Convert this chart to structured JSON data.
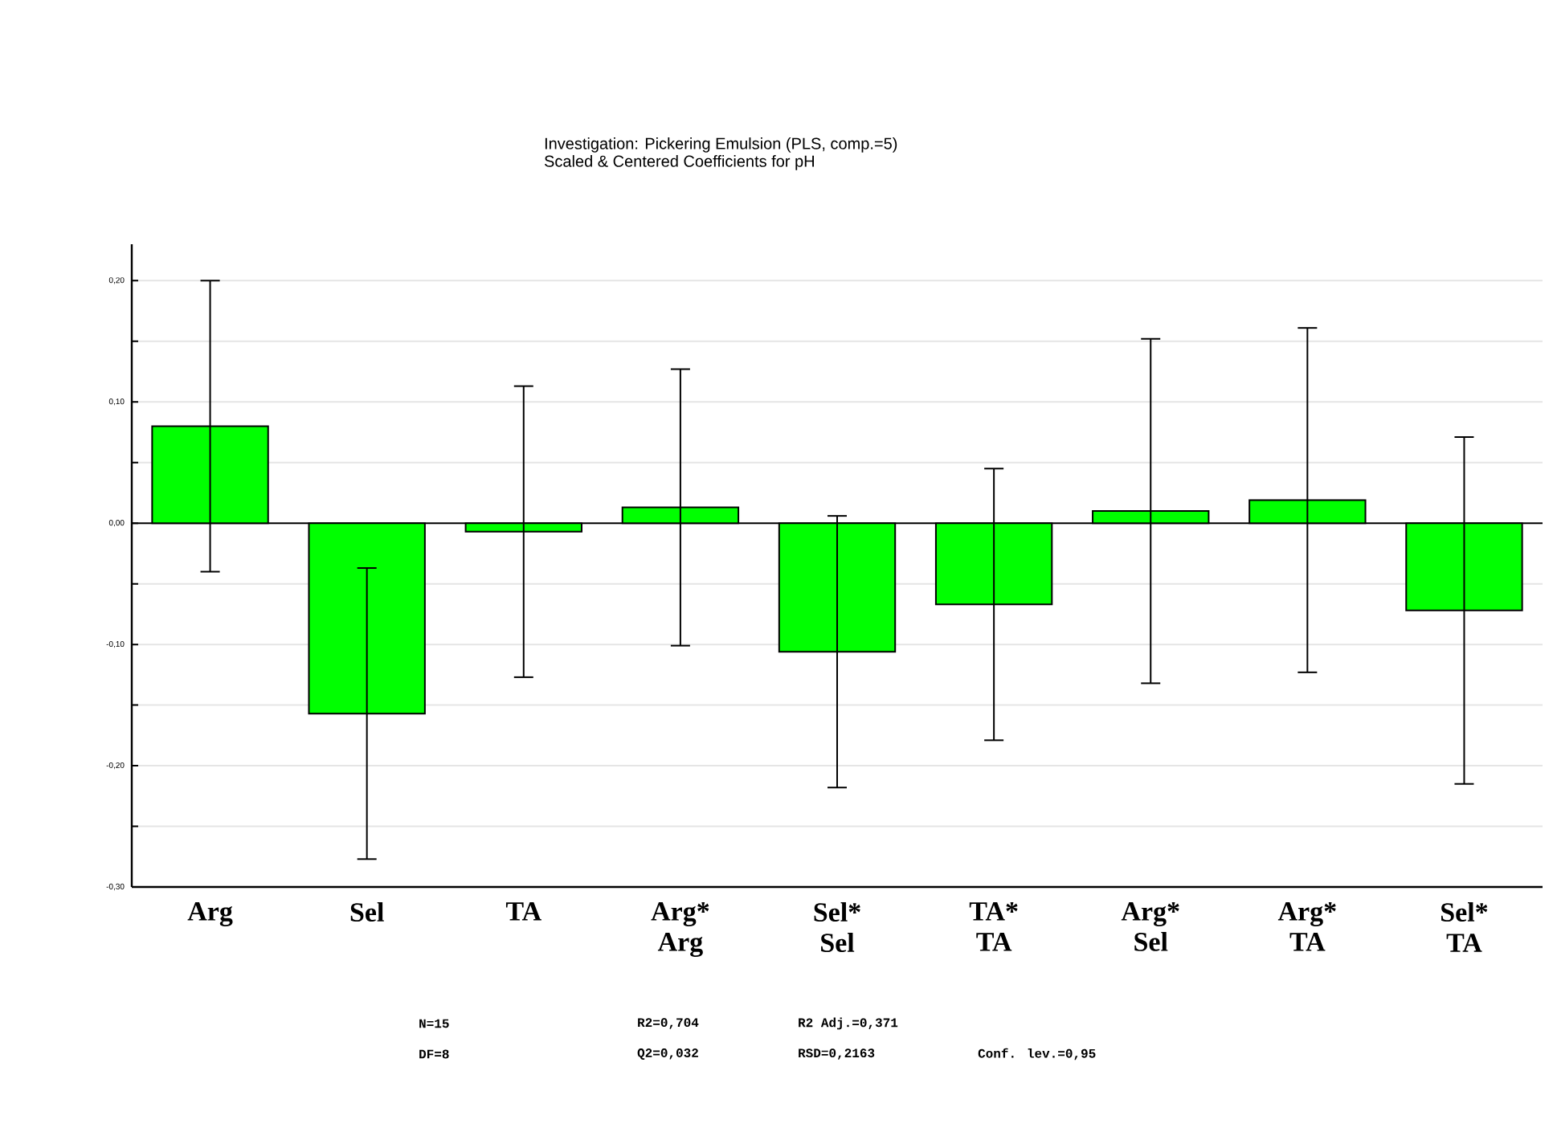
{
  "chart_data": {
    "type": "bar",
    "title": "Investigation: Pickering Emulsion (PLS, comp.=5)",
    "subtitle": "Scaled & Centered Coefficients for pH",
    "categories": [
      "Arg",
      "Sel",
      "TA",
      "Arg* Arg",
      "Sel* Sel",
      "TA* TA",
      "Arg* Sel",
      "Arg* TA",
      "Sel* TA"
    ],
    "values": [
      0.08,
      -0.157,
      -0.007,
      0.013,
      -0.106,
      -0.067,
      0.01,
      0.019,
      -0.072
    ],
    "errors": [
      0.12,
      0.12,
      0.12,
      0.114,
      0.112,
      0.112,
      0.142,
      0.142,
      0.143
    ],
    "color": "#00ff00",
    "ylim": [
      -0.3,
      0.23
    ],
    "yticks": [
      {
        "value": -0.3,
        "label": "-0,30"
      },
      {
        "value": -0.25,
        "label": null
      },
      {
        "value": -0.2,
        "label": "-0,20"
      },
      {
        "value": -0.15,
        "label": null
      },
      {
        "value": -0.1,
        "label": "-0,10"
      },
      {
        "value": -0.05,
        "label": null
      },
      {
        "value": 0,
        "label": "0,00"
      },
      {
        "value": 0.05,
        "label": null
      },
      {
        "value": 0.1,
        "label": "0,10"
      },
      {
        "value": 0.15,
        "label": null
      },
      {
        "value": 0.2,
        "label": "0,20"
      }
    ],
    "grid": "y",
    "annotations": [
      "N=15",
      "R2=0,704",
      "R2 Adj.=0,371",
      "DF=8",
      "Q2=0,032",
      "RSD=0,2163",
      "Conf. lev.=0,95"
    ]
  }
}
